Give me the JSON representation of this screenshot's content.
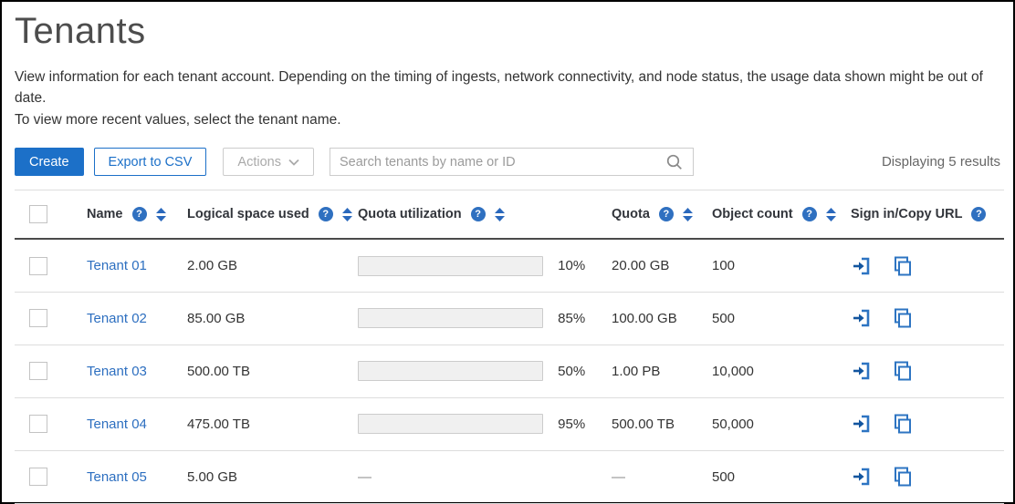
{
  "page": {
    "title": "Tenants",
    "description_line1": "View information for each tenant account. Depending on the timing of ingests, network connectivity, and node status, the usage data shown might be out of date.",
    "description_line2": "To view more recent values, select the tenant name."
  },
  "toolbar": {
    "create_label": "Create",
    "export_label": "Export to CSV",
    "actions_label": "Actions",
    "search_placeholder": "Search tenants by name or ID",
    "results_text": "Displaying 5 results"
  },
  "table": {
    "columns": [
      {
        "label": "Name"
      },
      {
        "label": "Logical space used"
      },
      {
        "label": "Quota utilization"
      },
      {
        "label": "Quota"
      },
      {
        "label": "Object count"
      },
      {
        "label": "Sign in/Copy URL"
      }
    ],
    "empty_value": "—",
    "rows": [
      {
        "name": "Tenant 01",
        "logical_space": "2.00 GB",
        "quota_utilization": {
          "percent": 10,
          "label": "10%",
          "color": "#a9d87f"
        },
        "quota": "20.00 GB",
        "object_count": "100"
      },
      {
        "name": "Tenant 02",
        "logical_space": "85.00 GB",
        "quota_utilization": {
          "percent": 85,
          "label": "85%",
          "color": "#fbd98e"
        },
        "quota": "100.00 GB",
        "object_count": "500"
      },
      {
        "name": "Tenant 03",
        "logical_space": "500.00 TB",
        "quota_utilization": {
          "percent": 50,
          "label": "50%",
          "color": "#a9d87f"
        },
        "quota": "1.00 PB",
        "object_count": "10,000"
      },
      {
        "name": "Tenant 04",
        "logical_space": "475.00 TB",
        "quota_utilization": {
          "percent": 95,
          "label": "95%",
          "color": "#f8c9c4"
        },
        "quota": "500.00 TB",
        "object_count": "50,000"
      },
      {
        "name": "Tenant 05",
        "logical_space": "5.00 GB",
        "quota_utilization": null,
        "quota": null,
        "object_count": "500"
      }
    ]
  },
  "colors": {
    "primary_blue": "#1c70c8",
    "link_blue": "#2d6fc0",
    "bar_green": "#a9d87f",
    "bar_yellow": "#fbd98e",
    "bar_red": "#f8c9c4",
    "bar_track": "#f0f0f0"
  },
  "icons": {
    "help": "?",
    "search": "magnifier",
    "sign_in": "arrow-into-door",
    "copy": "overlapping-squares"
  }
}
